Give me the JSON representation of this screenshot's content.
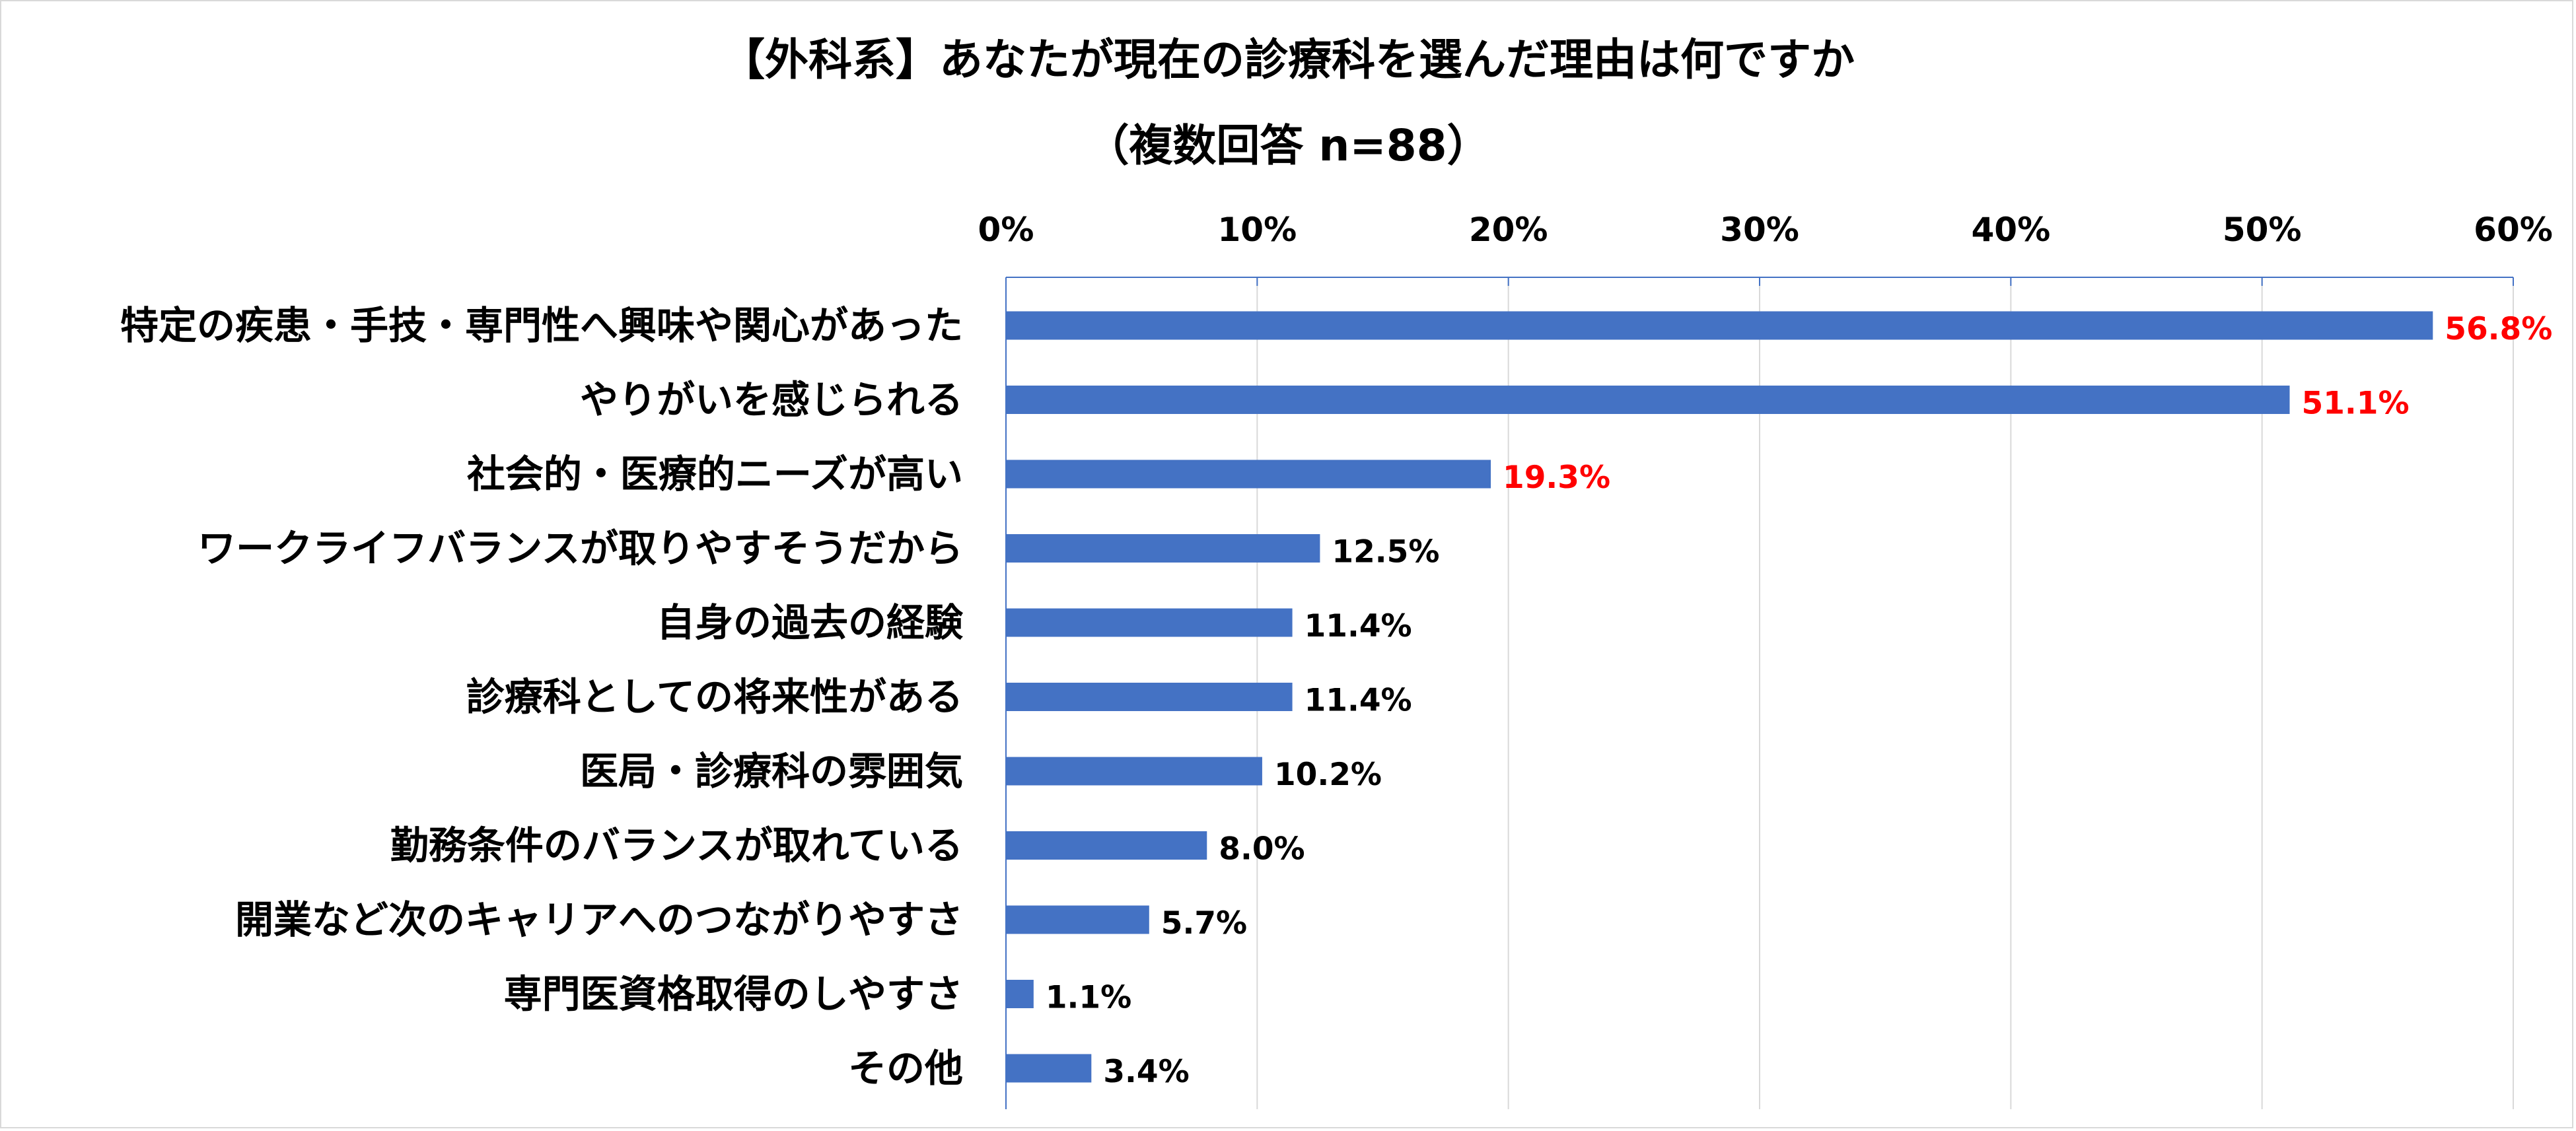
{
  "chart_data": {
    "type": "bar",
    "orientation": "horizontal",
    "title": "【外科系】あなたが現在の診療科を選んだ理由は何ですか",
    "subtitle": "（複数回答 n=88）",
    "xlim": [
      0,
      60
    ],
    "ticks": [
      0,
      10,
      20,
      30,
      40,
      50,
      60
    ],
    "tick_suffix": "%",
    "grid": true,
    "categories": [
      "特定の疾患・手技・専門性へ興味や関心があった",
      "やりがいを感じられる",
      "社会的・医療的ニーズが高い",
      "ワークライフバランスが取りやすそうだから",
      "自身の過去の経験",
      "診療科としての将来性がある",
      "医局・診療科の雰囲気",
      "勤務条件のバランスが取れている",
      "開業など次のキャリアへのつながりやすさ",
      "専門医資格取得のしやすさ",
      "その他"
    ],
    "values": [
      56.8,
      51.1,
      19.3,
      12.5,
      11.4,
      11.4,
      10.2,
      8.0,
      5.7,
      1.1,
      3.4
    ],
    "value_labels": [
      "56.8%",
      "51.1%",
      "19.3%",
      "12.5%",
      "11.4%",
      "11.4%",
      "10.2%",
      "8.0%",
      "5.7%",
      "1.1%",
      "3.4%"
    ],
    "highlight_top": 3,
    "colors": {
      "bar": "#4472c4",
      "highlight_label": "#ff0000",
      "label": "#000000",
      "grid": "#d9d9d9",
      "axis": "#4472c4"
    }
  }
}
